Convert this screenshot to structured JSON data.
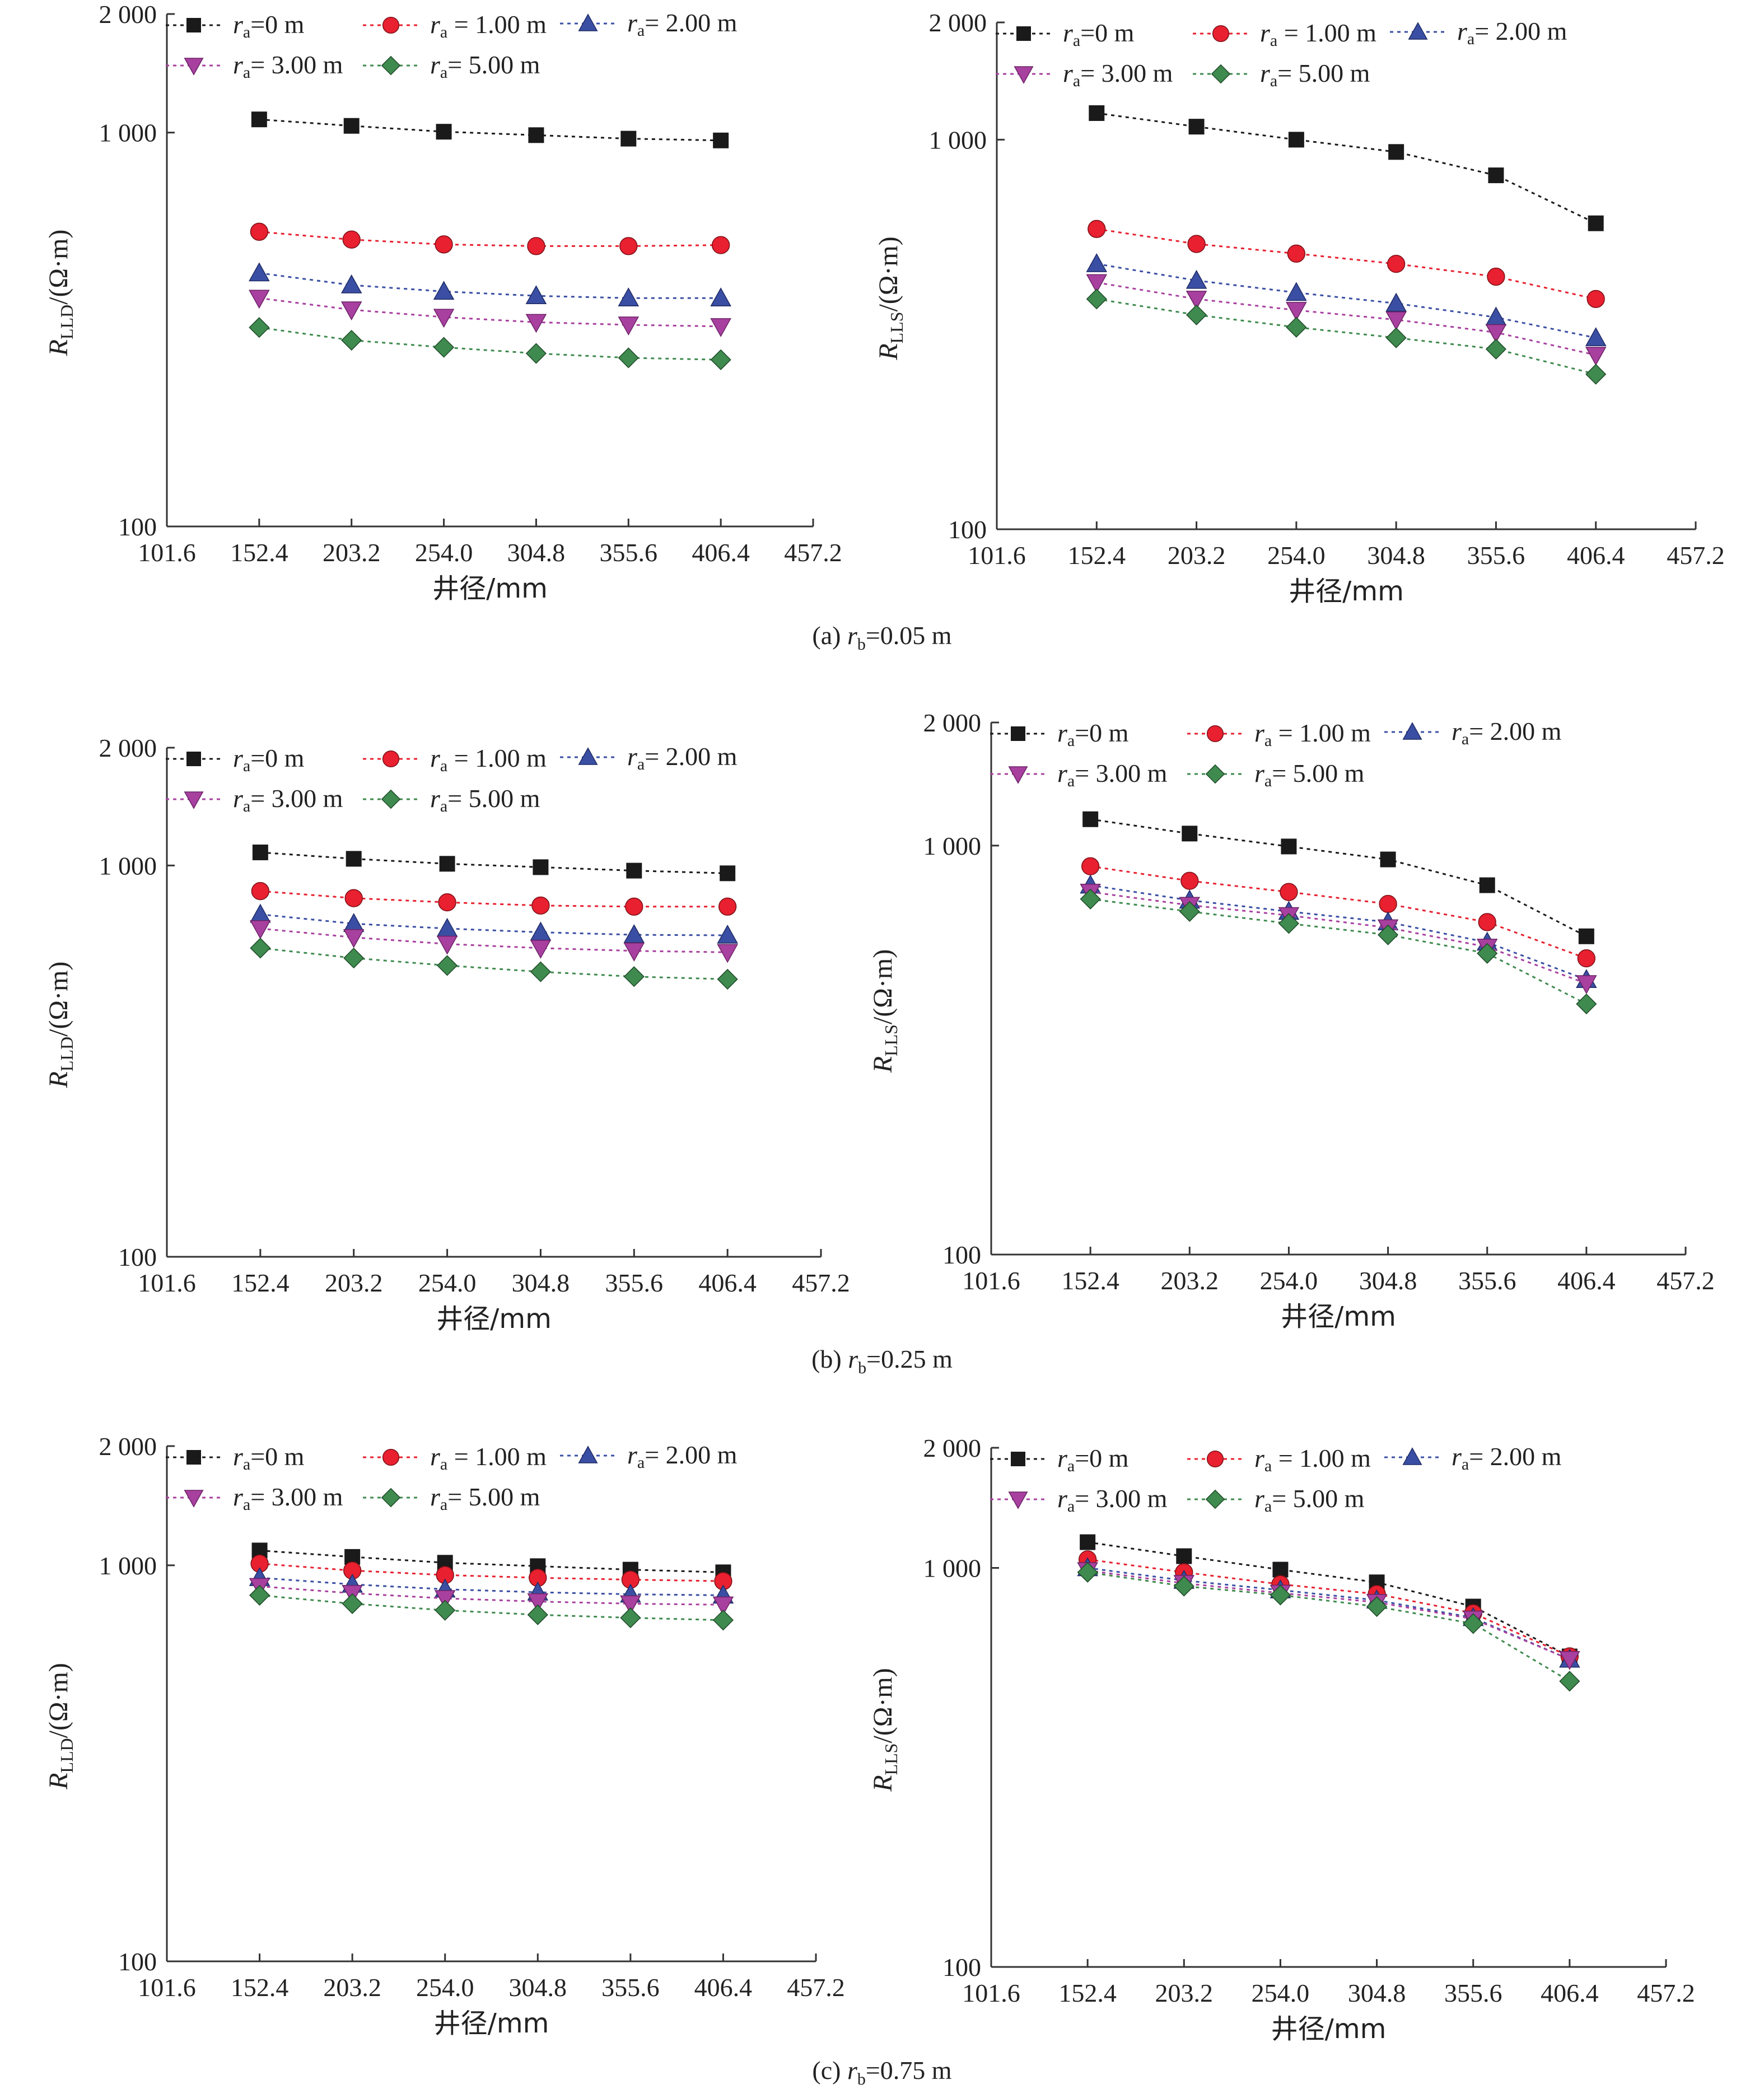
{
  "x_ticks": [
    "101.6",
    "152.4",
    "203.2",
    "254.0",
    "304.8",
    "355.6",
    "406.4",
    "457.2"
  ],
  "y_ticks": [
    "100",
    "1 000",
    "2 000"
  ],
  "x_label": "井径/mm",
  "units": "/(Ω·m)",
  "legend": [
    {
      "r": "r",
      "sub": "a",
      "rest": "=0 m",
      "marker": "square",
      "color": "#1a1a1a"
    },
    {
      "r": "r",
      "sub": "a",
      "rest": " = 1.00 m",
      "marker": "circle",
      "color": "#e8202f"
    },
    {
      "r": "r",
      "sub": "a",
      "rest": "= 2.00 m",
      "marker": "triangle-up",
      "color": "#3a4fa3"
    },
    {
      "r": "r",
      "sub": "a",
      "rest": "= 3.00 m",
      "marker": "triangle-down",
      "color": "#a8409f"
    },
    {
      "r": "r",
      "sub": "a",
      "rest": "= 5.00 m",
      "marker": "diamond",
      "color": "#3f8a4e"
    }
  ],
  "captions": [
    {
      "prefix": "(a)",
      "r": "r",
      "sub": "b",
      "rest": "=0.05 m"
    },
    {
      "prefix": "(b)",
      "r": "r",
      "sub": "b",
      "rest": "=0.25 m"
    },
    {
      "prefix": "(c)",
      "r": "r",
      "sub": "b",
      "rest": "=0.75 m"
    }
  ],
  "chart_data": [
    {
      "type": "line",
      "panel": "a-left",
      "ylog": true,
      "ylim": [
        100,
        2000
      ],
      "xlim": [
        101.6,
        457.2
      ],
      "ylabel_main": "R",
      "ylabel_sub": "LLD",
      "xlabel": "井径/mm",
      "x": [
        152.4,
        203.2,
        254.0,
        304.8,
        355.6,
        406.4
      ],
      "series": [
        {
          "name": "ra=0 m",
          "values": [
            1080,
            1040,
            1005,
            985,
            965,
            955
          ]
        },
        {
          "name": "ra=1.00 m",
          "values": [
            560,
            535,
            520,
            515,
            515,
            518
          ]
        },
        {
          "name": "ra=2.00 m",
          "values": [
            440,
            410,
            395,
            385,
            380,
            380
          ]
        },
        {
          "name": "ra=3.00 m",
          "values": [
            380,
            355,
            340,
            330,
            325,
            322
          ]
        },
        {
          "name": "ra=5.00 m",
          "values": [
            320,
            297,
            285,
            275,
            268,
            265
          ]
        }
      ]
    },
    {
      "type": "line",
      "panel": "a-right",
      "ylog": true,
      "ylim": [
        100,
        2000
      ],
      "xlim": [
        101.6,
        457.2
      ],
      "ylabel_main": "R",
      "ylabel_sub": "LLS",
      "xlabel": "井径/mm",
      "x": [
        152.4,
        203.2,
        254.0,
        304.8,
        355.6,
        406.4
      ],
      "series": [
        {
          "name": "ra=0 m",
          "values": [
            1170,
            1080,
            1000,
            930,
            810,
            610
          ]
        },
        {
          "name": "ra=1.00 m",
          "values": [
            590,
            540,
            510,
            480,
            445,
            390
          ]
        },
        {
          "name": "ra=2.00 m",
          "values": [
            480,
            435,
            405,
            380,
            350,
            310
          ]
        },
        {
          "name": "ra=3.00 m",
          "values": [
            430,
            390,
            365,
            345,
            320,
            280
          ]
        },
        {
          "name": "ra=5.00 m",
          "values": [
            390,
            355,
            330,
            310,
            290,
            250
          ]
        }
      ]
    },
    {
      "type": "line",
      "panel": "b-left",
      "ylog": true,
      "ylim": [
        100,
        2000
      ],
      "xlim": [
        101.6,
        457.2
      ],
      "ylabel_main": "R",
      "ylabel_sub": "LLD",
      "xlabel": "井径/mm",
      "x": [
        152.4,
        203.2,
        254.0,
        304.8,
        355.6,
        406.4
      ],
      "series": [
        {
          "name": "ra=0 m",
          "values": [
            1080,
            1040,
            1010,
            990,
            970,
            955
          ]
        },
        {
          "name": "ra=1.00 m",
          "values": [
            860,
            825,
            805,
            790,
            785,
            785
          ]
        },
        {
          "name": "ra=2.00 m",
          "values": [
            750,
            710,
            690,
            675,
            665,
            663
          ]
        },
        {
          "name": "ra=3.00 m",
          "values": [
            690,
            655,
            630,
            615,
            605,
            600
          ]
        },
        {
          "name": "ra=5.00 m",
          "values": [
            615,
            580,
            555,
            535,
            520,
            512
          ]
        }
      ]
    },
    {
      "type": "line",
      "panel": "b-right",
      "ylog": true,
      "ylim": [
        100,
        2000
      ],
      "xlim": [
        101.6,
        457.2
      ],
      "ylabel_main": "R",
      "ylabel_sub": "LLS",
      "xlabel": "井径/mm",
      "x": [
        152.4,
        203.2,
        254.0,
        304.8,
        355.6,
        406.4
      ],
      "series": [
        {
          "name": "ra=0 m",
          "values": [
            1160,
            1070,
            995,
            925,
            800,
            600
          ]
        },
        {
          "name": "ra=1.00 m",
          "values": [
            890,
            820,
            770,
            720,
            650,
            530
          ]
        },
        {
          "name": "ra=2.00 m",
          "values": [
            800,
            735,
            690,
            650,
            580,
            470
          ]
        },
        {
          "name": "ra=3.00 m",
          "values": [
            770,
            715,
            675,
            630,
            565,
            460
          ]
        },
        {
          "name": "ra=5.00 m",
          "values": [
            740,
            690,
            645,
            605,
            545,
            410
          ]
        }
      ]
    },
    {
      "type": "line",
      "panel": "c-left",
      "ylog": true,
      "ylim": [
        100,
        2000
      ],
      "xlim": [
        101.6,
        457.2
      ],
      "ylabel_main": "R",
      "ylabel_sub": "LLD",
      "xlabel": "井径/mm",
      "x": [
        152.4,
        203.2,
        254.0,
        304.8,
        355.6,
        406.4
      ],
      "series": [
        {
          "name": "ra=0 m",
          "values": [
            1090,
            1050,
            1015,
            995,
            975,
            960
          ]
        },
        {
          "name": "ra=1.00 m",
          "values": [
            1010,
            970,
            945,
            930,
            920,
            912
          ]
        },
        {
          "name": "ra=2.00 m",
          "values": [
            930,
            895,
            870,
            855,
            845,
            840
          ]
        },
        {
          "name": "ra=3.00 m",
          "values": [
            885,
            850,
            825,
            810,
            800,
            795
          ]
        },
        {
          "name": "ra=5.00 m",
          "values": [
            840,
            800,
            770,
            750,
            737,
            727
          ]
        }
      ]
    },
    {
      "type": "line",
      "panel": "c-right",
      "ylog": true,
      "ylim": [
        100,
        2000
      ],
      "xlim": [
        101.6,
        457.2
      ],
      "ylabel_main": "R",
      "ylabel_sub": "LLS",
      "xlabel": "井径/mm",
      "x": [
        152.4,
        203.2,
        254.0,
        304.8,
        355.6,
        406.4
      ],
      "series": [
        {
          "name": "ra=0 m",
          "values": [
            1160,
            1070,
            990,
            920,
            800,
            600
          ]
        },
        {
          "name": "ra=1.00 m",
          "values": [
            1050,
            975,
            910,
            860,
            770,
            600
          ]
        },
        {
          "name": "ra=2.00 m",
          "values": [
            1000,
            930,
            880,
            830,
            750,
            590
          ]
        },
        {
          "name": "ra=3.00 m",
          "values": [
            985,
            915,
            865,
            820,
            745,
            590
          ]
        },
        {
          "name": "ra=5.00 m",
          "values": [
            975,
            900,
            855,
            800,
            725,
            520
          ]
        }
      ]
    }
  ]
}
